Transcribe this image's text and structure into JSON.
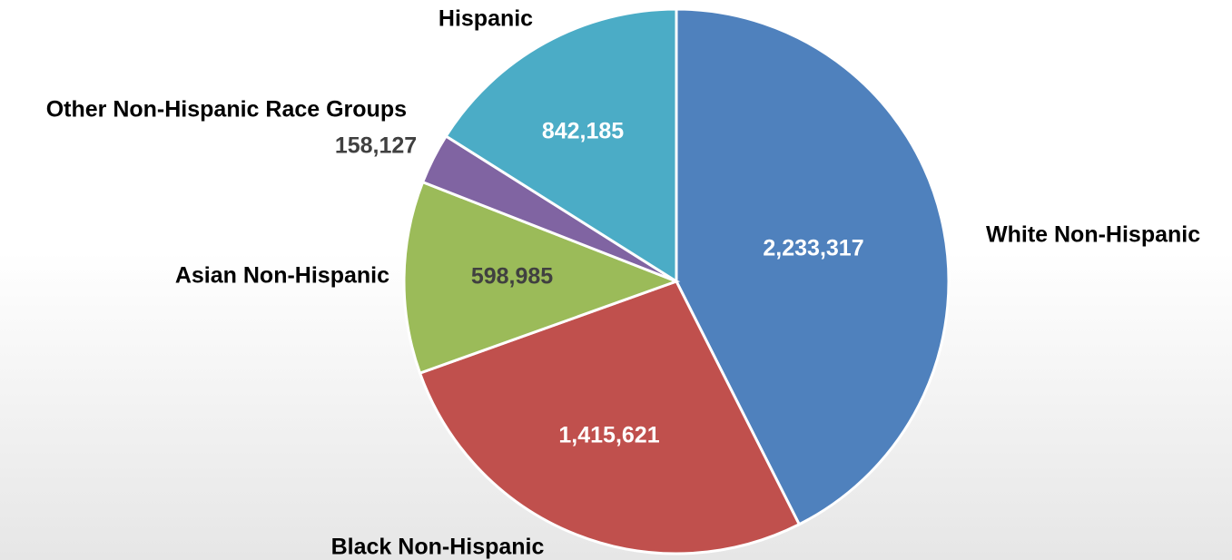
{
  "chart_data": {
    "type": "pie",
    "start_angle_deg": 0,
    "direction": "clockwise",
    "slices": [
      {
        "label": "White Non-Hispanic",
        "value": 2233317,
        "value_label": "2,233,317",
        "color": "#4F81BD",
        "value_color": "#FFFFFF"
      },
      {
        "label": "Black Non-Hispanic",
        "value": 1415621,
        "value_label": "1,415,621",
        "color": "#C0504D",
        "value_color": "#FFFFFF"
      },
      {
        "label": "Asian Non-Hispanic",
        "value": 598985,
        "value_label": "598,985",
        "color": "#9BBB59",
        "value_color": "#404040"
      },
      {
        "label": "Other Non-Hispanic Race Groups",
        "value": 158127,
        "value_label": "158,127",
        "color": "#8064A2",
        "value_color": "#404040"
      },
      {
        "label": "Hispanic",
        "value": 842185,
        "value_label": "842,185",
        "color": "#4BACC6",
        "value_color": "#FFFFFF"
      }
    ]
  }
}
